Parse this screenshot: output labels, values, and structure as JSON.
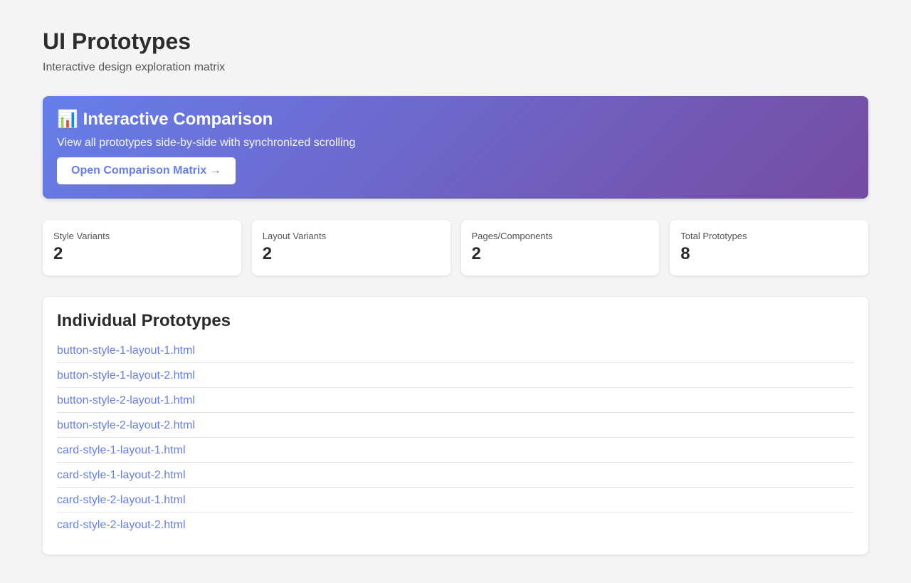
{
  "header": {
    "title": "UI Prototypes",
    "subtitle": "Interactive design exploration matrix"
  },
  "banner": {
    "icon": "bar-chart-icon",
    "icon_glyph": "📊",
    "title": "Interactive Comparison",
    "description": "View all prototypes side-by-side with synchronized scrolling",
    "button_label": "Open Comparison Matrix →",
    "gradient": [
      "#667eea",
      "#764ba2"
    ]
  },
  "stats": [
    {
      "label": "Style Variants",
      "value": "2"
    },
    {
      "label": "Layout Variants",
      "value": "2"
    },
    {
      "label": "Pages/Components",
      "value": "2"
    },
    {
      "label": "Total Prototypes",
      "value": "8"
    }
  ],
  "prototypes": {
    "title": "Individual Prototypes",
    "items": [
      "button-style-1-layout-1.html",
      "button-style-1-layout-2.html",
      "button-style-2-layout-1.html",
      "button-style-2-layout-2.html",
      "card-style-1-layout-1.html",
      "card-style-1-layout-2.html",
      "card-style-2-layout-1.html",
      "card-style-2-layout-2.html"
    ]
  }
}
